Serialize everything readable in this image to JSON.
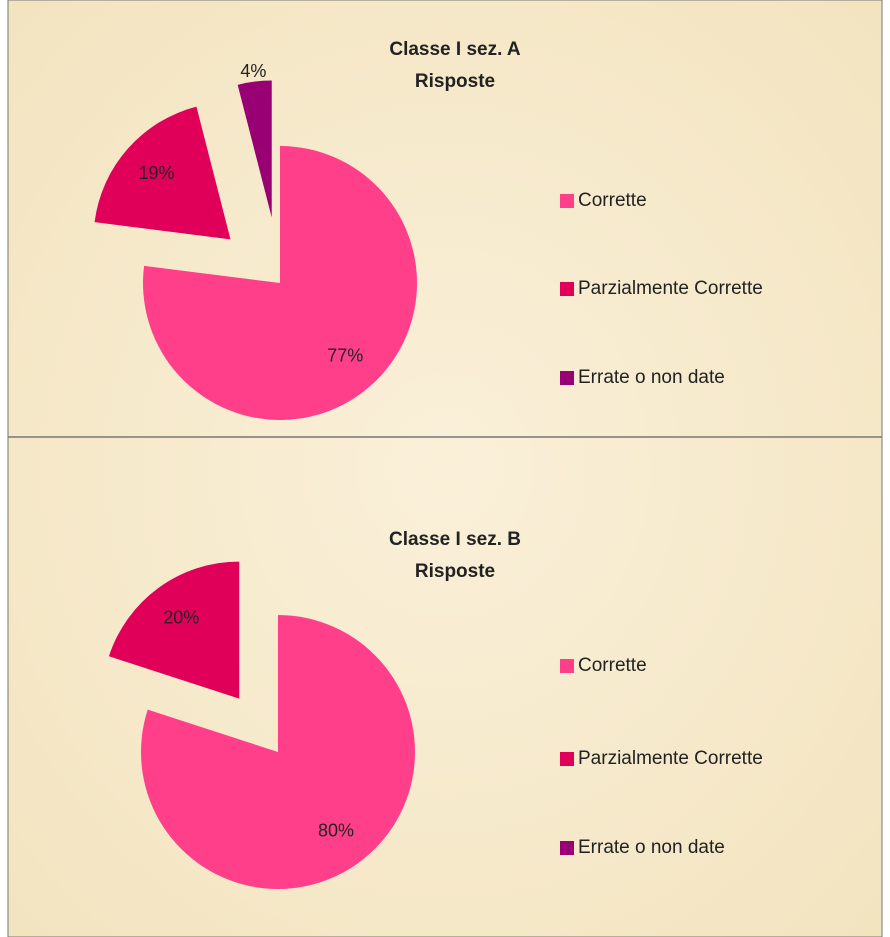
{
  "chart_data": [
    {
      "type": "pie",
      "title": "Classe I sez. A",
      "subtitle": "Risposte",
      "categories": [
        "Corrette",
        "Parzialmente Corrette",
        "Errate o non date"
      ],
      "values": [
        77,
        19,
        4
      ],
      "value_labels": [
        "77%",
        "19%",
        "4%"
      ],
      "colors": [
        "#ff3f8a",
        "#e0005a",
        "#990073"
      ],
      "legend": "right"
    },
    {
      "type": "pie",
      "title": "Classe I sez. B",
      "subtitle": "Risposte",
      "categories": [
        "Corrette",
        "Parzialmente Corrette",
        "Errate o non date"
      ],
      "values": [
        80,
        20,
        0
      ],
      "value_labels": [
        "80%",
        "20%",
        null
      ],
      "colors": [
        "#ff3f8a",
        "#e0005a",
        "#990073"
      ],
      "legend": "right"
    }
  ]
}
